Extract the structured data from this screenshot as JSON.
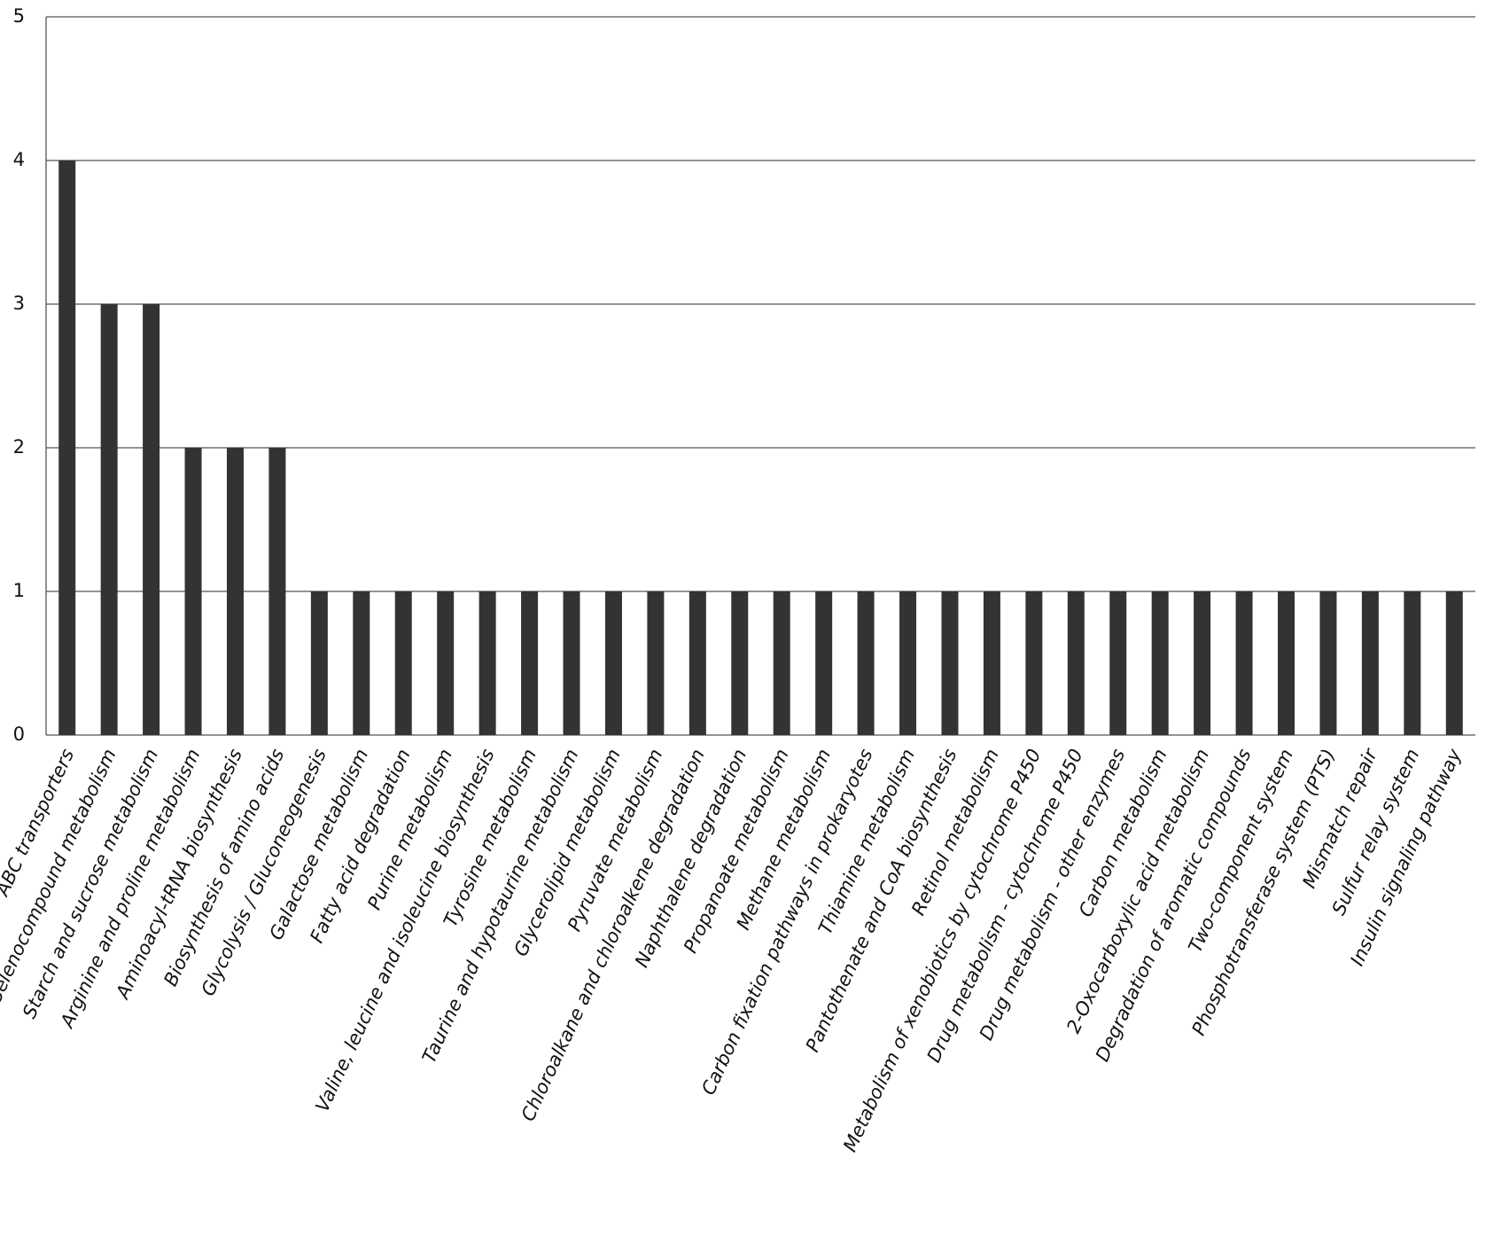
{
  "chart_data": {
    "type": "bar",
    "categories": [
      "ABC transporters",
      "Selenocompound metabolism",
      "Starch and sucrose metabolism",
      "Arginine and proline metabolism",
      "Aminoacyl-tRNA biosynthesis",
      "Biosynthesis of amino acids",
      "Glycolysis / Gluconeogenesis",
      "Galactose metabolism",
      "Fatty acid degradation",
      "Purine metabolism",
      "Valine, leucine and isoleucine biosynthesis",
      "Tyrosine metabolism",
      "Taurine and hypotaurine metabolism",
      "Glycerolipid metabolism",
      "Pyruvate metabolism",
      "Chloroalkane and chloroalkene degradation",
      "Naphthalene degradation",
      "Propanoate metabolism",
      "Methane metabolism",
      "Carbon fixation pathways in prokaryotes",
      "Thiamine metabolism",
      "Pantothenate and CoA biosynthesis",
      "Retinol metabolism",
      "Metabolism of xenobiotics by cytochrome P450",
      "Drug metabolism - cytochrome P450",
      "Drug metabolism - other enzymes",
      "Carbon metabolism",
      "2-Oxocarboxylic acid metabolism",
      "Degradation of aromatic compounds",
      "Two-component system",
      "Phosphotransferase system (PTS)",
      "Mismatch repair",
      "Sulfur relay system",
      "Insulin signaling pathway"
    ],
    "values": [
      4,
      3,
      3,
      2,
      2,
      2,
      1,
      1,
      1,
      1,
      1,
      1,
      1,
      1,
      1,
      1,
      1,
      1,
      1,
      1,
      1,
      1,
      1,
      1,
      1,
      1,
      1,
      1,
      1,
      1,
      1,
      1,
      1,
      1
    ],
    "color": "#333333",
    "ylim": [
      0,
      5
    ],
    "yticks": [
      0,
      1,
      2,
      3,
      4,
      5
    ],
    "grid": true
  }
}
